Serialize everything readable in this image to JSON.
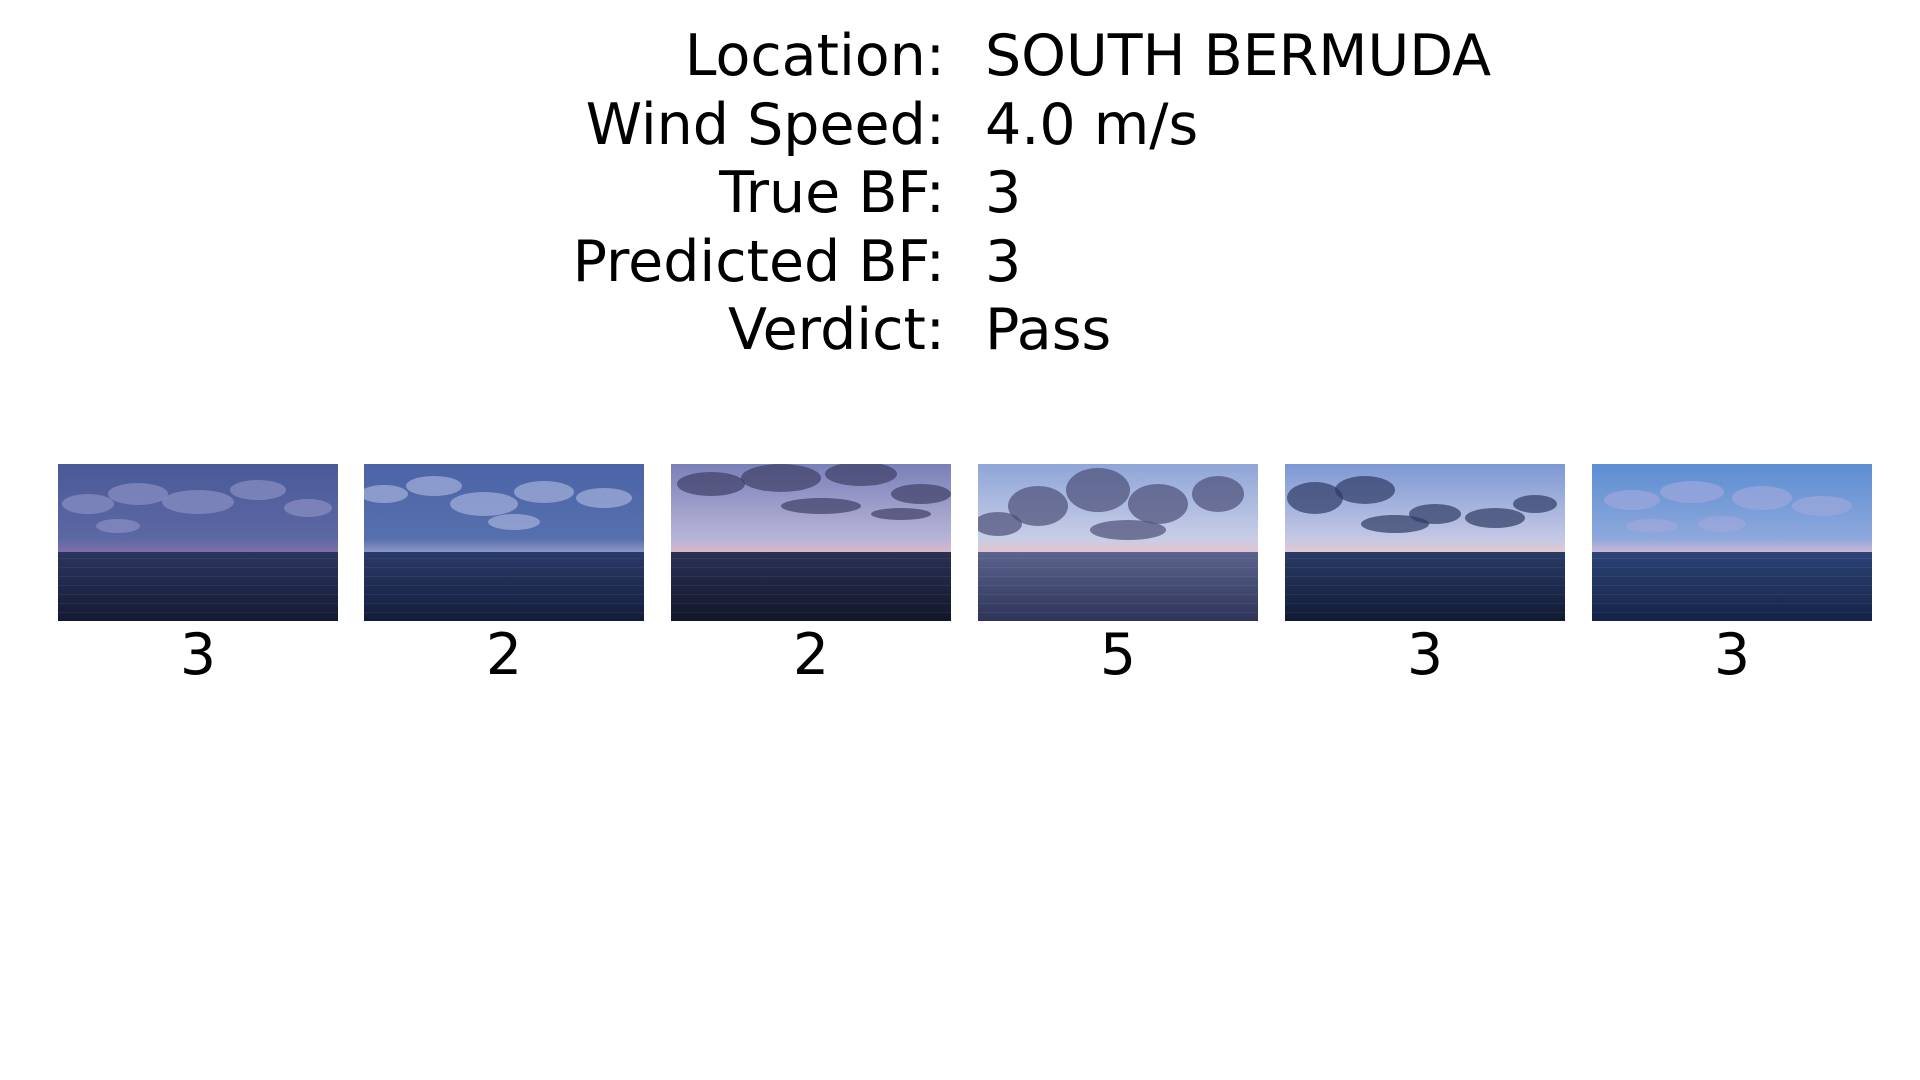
{
  "info": {
    "rows": [
      {
        "label": "Location:",
        "value": "SOUTH BERMUDA"
      },
      {
        "label": "Wind Speed:",
        "value": "4.0 m/s"
      },
      {
        "label": "True BF:",
        "value": "3"
      },
      {
        "label": "Predicted BF:",
        "value": "3"
      },
      {
        "label": "Verdict:",
        "value": "Pass"
      }
    ]
  },
  "thumbnails": [
    {
      "label": "3",
      "sky_top": "#4a5a98",
      "sky_bottom": "#5c68a4",
      "sea_top": "#2b3560",
      "sea_bottom": "#141a33",
      "cloud": "#8a90c4",
      "glow": "#7f6fa8"
    },
    {
      "label": "2",
      "sky_top": "#4c64a6",
      "sky_bottom": "#5670ae",
      "sea_top": "#2a3a6a",
      "sea_bottom": "#131c3a",
      "cloud": "#a4b0dc",
      "glow": "#8b96c8"
    },
    {
      "label": "2",
      "sky_top": "#7a80b8",
      "sky_bottom": "#b7b4d8",
      "sea_top": "#2a3155",
      "sea_bottom": "#121629",
      "cloud": "#3e3f66",
      "glow": "#d9b7c8"
    },
    {
      "label": "5",
      "sky_top": "#8fa6d8",
      "sky_bottom": "#c8cde6",
      "sea_top": "#5b638e",
      "sea_bottom": "#2e3458",
      "cloud": "#4b4f78",
      "glow": "#e2c4cf"
    },
    {
      "label": "3",
      "sky_top": "#7d98d4",
      "sky_bottom": "#c4c8e4",
      "sea_top": "#2a3b66",
      "sea_bottom": "#111a34",
      "cloud": "#2e3a64",
      "glow": "#e1c9cf"
    },
    {
      "label": "3",
      "sky_top": "#5c8ed2",
      "sky_bottom": "#8ea8dc",
      "sea_top": "#2c4478",
      "sea_bottom": "#152246",
      "cloud": "#9ea6dc",
      "glow": "#c9b6d6"
    }
  ]
}
